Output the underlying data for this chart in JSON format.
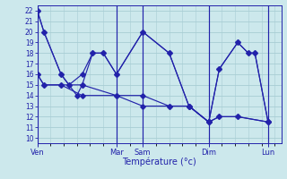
{
  "xlabel": "Température (°c)",
  "bg_color": "#cce8ec",
  "grid_color": "#a8cdd4",
  "line_color": "#2222aa",
  "ylim": [
    9.5,
    22.5
  ],
  "yticks": [
    10,
    11,
    12,
    13,
    14,
    15,
    16,
    17,
    18,
    19,
    20,
    21,
    22
  ],
  "day_labels": [
    "Ven",
    "Mar",
    "Sam",
    "Dim",
    "Lun"
  ],
  "day_positions": [
    0,
    60,
    80,
    130,
    175
  ],
  "xmax": 185,
  "s1_x": [
    0,
    5,
    18,
    24,
    34,
    42,
    50,
    60,
    80,
    100,
    115,
    130,
    138,
    152,
    160,
    165,
    175
  ],
  "s1_y": [
    22,
    20,
    16,
    15,
    16,
    18,
    18,
    16,
    20,
    18,
    13,
    11.5,
    16.5,
    19,
    18,
    18,
    11.5
  ],
  "s2_x": [
    0,
    5,
    18,
    24,
    30,
    34,
    42,
    50,
    60,
    80,
    100,
    115,
    130,
    138,
    152,
    160,
    165,
    175
  ],
  "s2_y": [
    22,
    20,
    16,
    15,
    14,
    15,
    18,
    18,
    16,
    20,
    18,
    13,
    11.5,
    16.5,
    19,
    18,
    18,
    11.5
  ],
  "s3_x": [
    0,
    5,
    18,
    34,
    60,
    80,
    100,
    115,
    130,
    138,
    152,
    175
  ],
  "s3_y": [
    16,
    15,
    15,
    15,
    14,
    13,
    13,
    13,
    11.5,
    12,
    12,
    11.5
  ],
  "s4_x": [
    0,
    5,
    18,
    34,
    60,
    80,
    100,
    115,
    130,
    138,
    152,
    175
  ],
  "s4_y": [
    16,
    15,
    15,
    14,
    14,
    14,
    13,
    13,
    11.5,
    12,
    12,
    11.5
  ]
}
